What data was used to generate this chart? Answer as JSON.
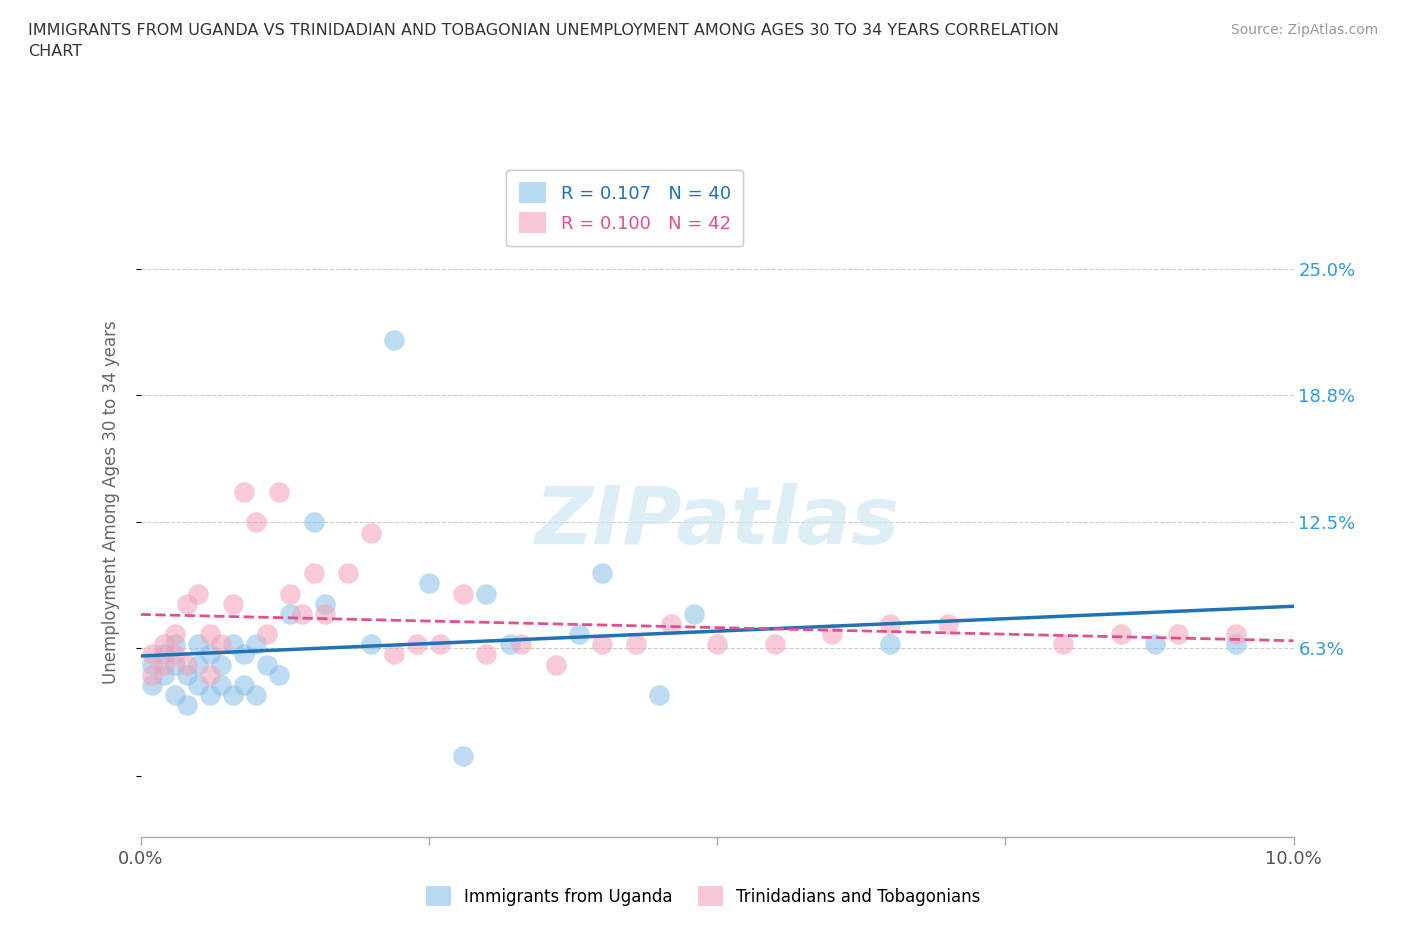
{
  "title": "IMMIGRANTS FROM UGANDA VS TRINIDADIAN AND TOBAGONIAN UNEMPLOYMENT AMONG AGES 30 TO 34 YEARS CORRELATION\nCHART",
  "source": "Source: ZipAtlas.com",
  "ylabel": "Unemployment Among Ages 30 to 34 years",
  "xlim": [
    0.0,
    0.1
  ],
  "ylim": [
    -0.03,
    0.3
  ],
  "yticks": [
    0.0,
    0.063,
    0.125,
    0.188,
    0.25
  ],
  "ytick_labels": [
    "",
    "6.3%",
    "12.5%",
    "18.8%",
    "25.0%"
  ],
  "xticks": [
    0.0,
    0.025,
    0.05,
    0.075,
    0.1
  ],
  "xtick_labels": [
    "0.0%",
    "",
    "",
    "",
    "10.0%"
  ],
  "watermark": "ZIPatlas",
  "legend1_R": "0.107",
  "legend1_N": "40",
  "legend2_R": "0.100",
  "legend2_N": "42",
  "blue_color": "#88c0e8",
  "pink_color": "#f4a0b8",
  "blue_line_color": "#2171b5",
  "pink_line_color": "#e05090",
  "uganda_x": [
    0.001,
    0.001,
    0.002,
    0.002,
    0.003,
    0.003,
    0.003,
    0.004,
    0.004,
    0.005,
    0.005,
    0.005,
    0.006,
    0.006,
    0.007,
    0.007,
    0.008,
    0.008,
    0.009,
    0.009,
    0.01,
    0.01,
    0.011,
    0.012,
    0.013,
    0.015,
    0.016,
    0.02,
    0.022,
    0.025,
    0.028,
    0.03,
    0.032,
    0.038,
    0.04,
    0.045,
    0.048,
    0.065,
    0.088,
    0.095
  ],
  "uganda_y": [
    0.055,
    0.045,
    0.05,
    0.06,
    0.04,
    0.055,
    0.065,
    0.035,
    0.05,
    0.045,
    0.055,
    0.065,
    0.04,
    0.06,
    0.045,
    0.055,
    0.04,
    0.065,
    0.045,
    0.06,
    0.04,
    0.065,
    0.055,
    0.05,
    0.08,
    0.125,
    0.085,
    0.065,
    0.215,
    0.095,
    0.01,
    0.09,
    0.065,
    0.07,
    0.1,
    0.04,
    0.08,
    0.065,
    0.065,
    0.065
  ],
  "trini_x": [
    0.001,
    0.001,
    0.002,
    0.002,
    0.003,
    0.003,
    0.004,
    0.004,
    0.005,
    0.006,
    0.006,
    0.007,
    0.008,
    0.009,
    0.01,
    0.011,
    0.012,
    0.013,
    0.014,
    0.015,
    0.016,
    0.018,
    0.02,
    0.022,
    0.024,
    0.026,
    0.028,
    0.03,
    0.033,
    0.036,
    0.04,
    0.043,
    0.046,
    0.05,
    0.055,
    0.06,
    0.065,
    0.07,
    0.08,
    0.085,
    0.09,
    0.095
  ],
  "trini_y": [
    0.06,
    0.05,
    0.065,
    0.055,
    0.06,
    0.07,
    0.055,
    0.085,
    0.09,
    0.05,
    0.07,
    0.065,
    0.085,
    0.14,
    0.125,
    0.07,
    0.14,
    0.09,
    0.08,
    0.1,
    0.08,
    0.1,
    0.12,
    0.06,
    0.065,
    0.065,
    0.09,
    0.06,
    0.065,
    0.055,
    0.065,
    0.065,
    0.075,
    0.065,
    0.065,
    0.07,
    0.075,
    0.075,
    0.065,
    0.07,
    0.07,
    0.07
  ]
}
